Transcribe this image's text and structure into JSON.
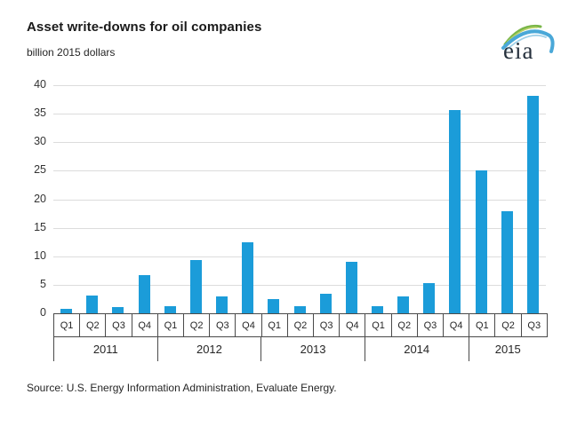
{
  "header": {
    "title": "Asset write-downs for oil companies",
    "subtitle": "billion 2015 dollars"
  },
  "logo": {
    "text": "eia"
  },
  "source": "Source:  U.S. Energy Information Administration, Evaluate Energy.",
  "chart_data": {
    "type": "bar",
    "title": "Asset write-downs for oil companies",
    "ylabel": "billion 2015 dollars",
    "xlabel": "",
    "ylim": [
      0,
      40
    ],
    "yticks": [
      0,
      5,
      10,
      15,
      20,
      25,
      30,
      35,
      40
    ],
    "grid": true,
    "legend": "none",
    "bar_color": "#1b9cd9",
    "groups": [
      {
        "year": "2011",
        "quarters": [
          "Q1",
          "Q2",
          "Q3",
          "Q4"
        ],
        "values": [
          0.8,
          3.1,
          1.1,
          6.7
        ]
      },
      {
        "year": "2012",
        "quarters": [
          "Q1",
          "Q2",
          "Q3",
          "Q4"
        ],
        "values": [
          1.3,
          9.4,
          2.9,
          12.5
        ]
      },
      {
        "year": "2013",
        "quarters": [
          "Q1",
          "Q2",
          "Q3",
          "Q4"
        ],
        "values": [
          2.5,
          1.2,
          3.4,
          9.1
        ]
      },
      {
        "year": "2014",
        "quarters": [
          "Q1",
          "Q2",
          "Q3",
          "Q4"
        ],
        "values": [
          1.2,
          2.9,
          5.3,
          35.6
        ]
      },
      {
        "year": "2015",
        "quarters": [
          "Q1",
          "Q2",
          "Q3"
        ],
        "values": [
          25.1,
          17.9,
          38.1
        ]
      }
    ]
  }
}
